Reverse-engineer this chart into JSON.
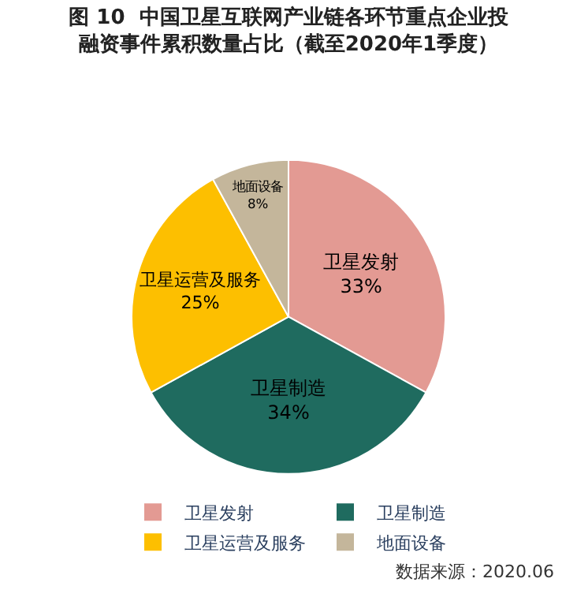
{
  "chart_data": {
    "type": "pie",
    "title": "图 10  中国卫星互联网产业链各环节重点企业投融资事件累积数量占比（截至2020年1季度）",
    "categories": [
      "卫星发射",
      "卫星制造",
      "卫星运营及服务",
      "地面设备"
    ],
    "values": [
      33,
      34,
      25,
      8
    ],
    "value_labels": [
      "33%",
      "34%",
      "25%",
      "8%"
    ],
    "colors": [
      "#e39a93",
      "#1f6b5f",
      "#fdbf00",
      "#c4b69b"
    ],
    "legend": "bottom",
    "annotations": [
      "数据来源：2020.06"
    ]
  }
}
